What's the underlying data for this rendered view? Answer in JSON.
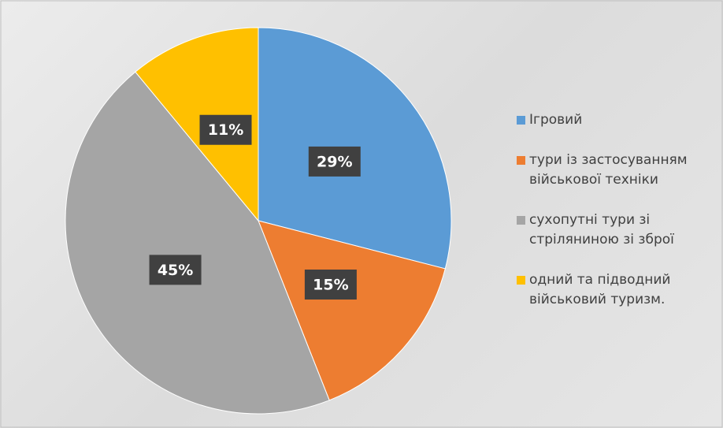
{
  "chart_data": {
    "type": "pie",
    "categories": [
      "Ігровий",
      "тури із застосуванням військової техніки",
      "сухопутні тури зі стріляниною зі зброї",
      "одний та підводний військовий туризм."
    ],
    "values": [
      29,
      15,
      45,
      11
    ],
    "value_labels": [
      "29%",
      "15%",
      "45%",
      "11%"
    ],
    "colors": [
      "#5b9bd5",
      "#ed7d31",
      "#a5a5a5",
      "#ffc000"
    ],
    "legend": "right"
  }
}
